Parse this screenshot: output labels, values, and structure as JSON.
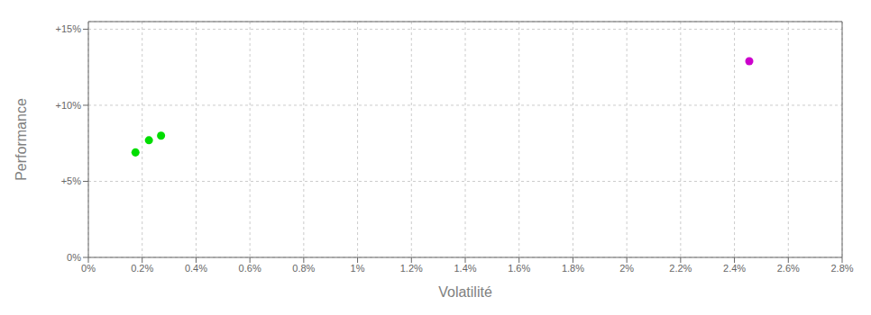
{
  "chart_data": {
    "type": "scatter",
    "x_label": "Volatilité",
    "y_label": "Performance",
    "xlim": [
      0.0,
      0.028
    ],
    "ylim": [
      0.0,
      0.155
    ],
    "xticks": [
      {
        "value": 0.0,
        "label": "0%"
      },
      {
        "value": 0.002,
        "label": "0.2%"
      },
      {
        "value": 0.004,
        "label": "0.4%"
      },
      {
        "value": 0.006,
        "label": "0.6%"
      },
      {
        "value": 0.008,
        "label": "0.8%"
      },
      {
        "value": 0.01,
        "label": "1%"
      },
      {
        "value": 0.012,
        "label": "1.2%"
      },
      {
        "value": 0.014,
        "label": "1.4%"
      },
      {
        "value": 0.016,
        "label": "1.6%"
      },
      {
        "value": 0.018,
        "label": "1.8%"
      },
      {
        "value": 0.02,
        "label": "2%"
      },
      {
        "value": 0.022,
        "label": "2.2%"
      },
      {
        "value": 0.024,
        "label": "2.4%"
      },
      {
        "value": 0.026,
        "label": "2.6%"
      },
      {
        "value": 0.028,
        "label": "2.8%"
      }
    ],
    "yticks": [
      {
        "value": 0.0,
        "label": "0%"
      },
      {
        "value": 0.05,
        "label": "+5%"
      },
      {
        "value": 0.1,
        "label": "+10%"
      },
      {
        "value": 0.15,
        "label": "+15%"
      }
    ],
    "grid": true,
    "series": [
      {
        "color": "#00dd00",
        "x": [
          0.00175,
          0.00225,
          0.0027
        ],
        "values": [
          0.069,
          0.077,
          0.08
        ]
      },
      {
        "color": "#cc00cc",
        "x": [
          0.02455
        ],
        "values": [
          0.129
        ]
      }
    ]
  }
}
